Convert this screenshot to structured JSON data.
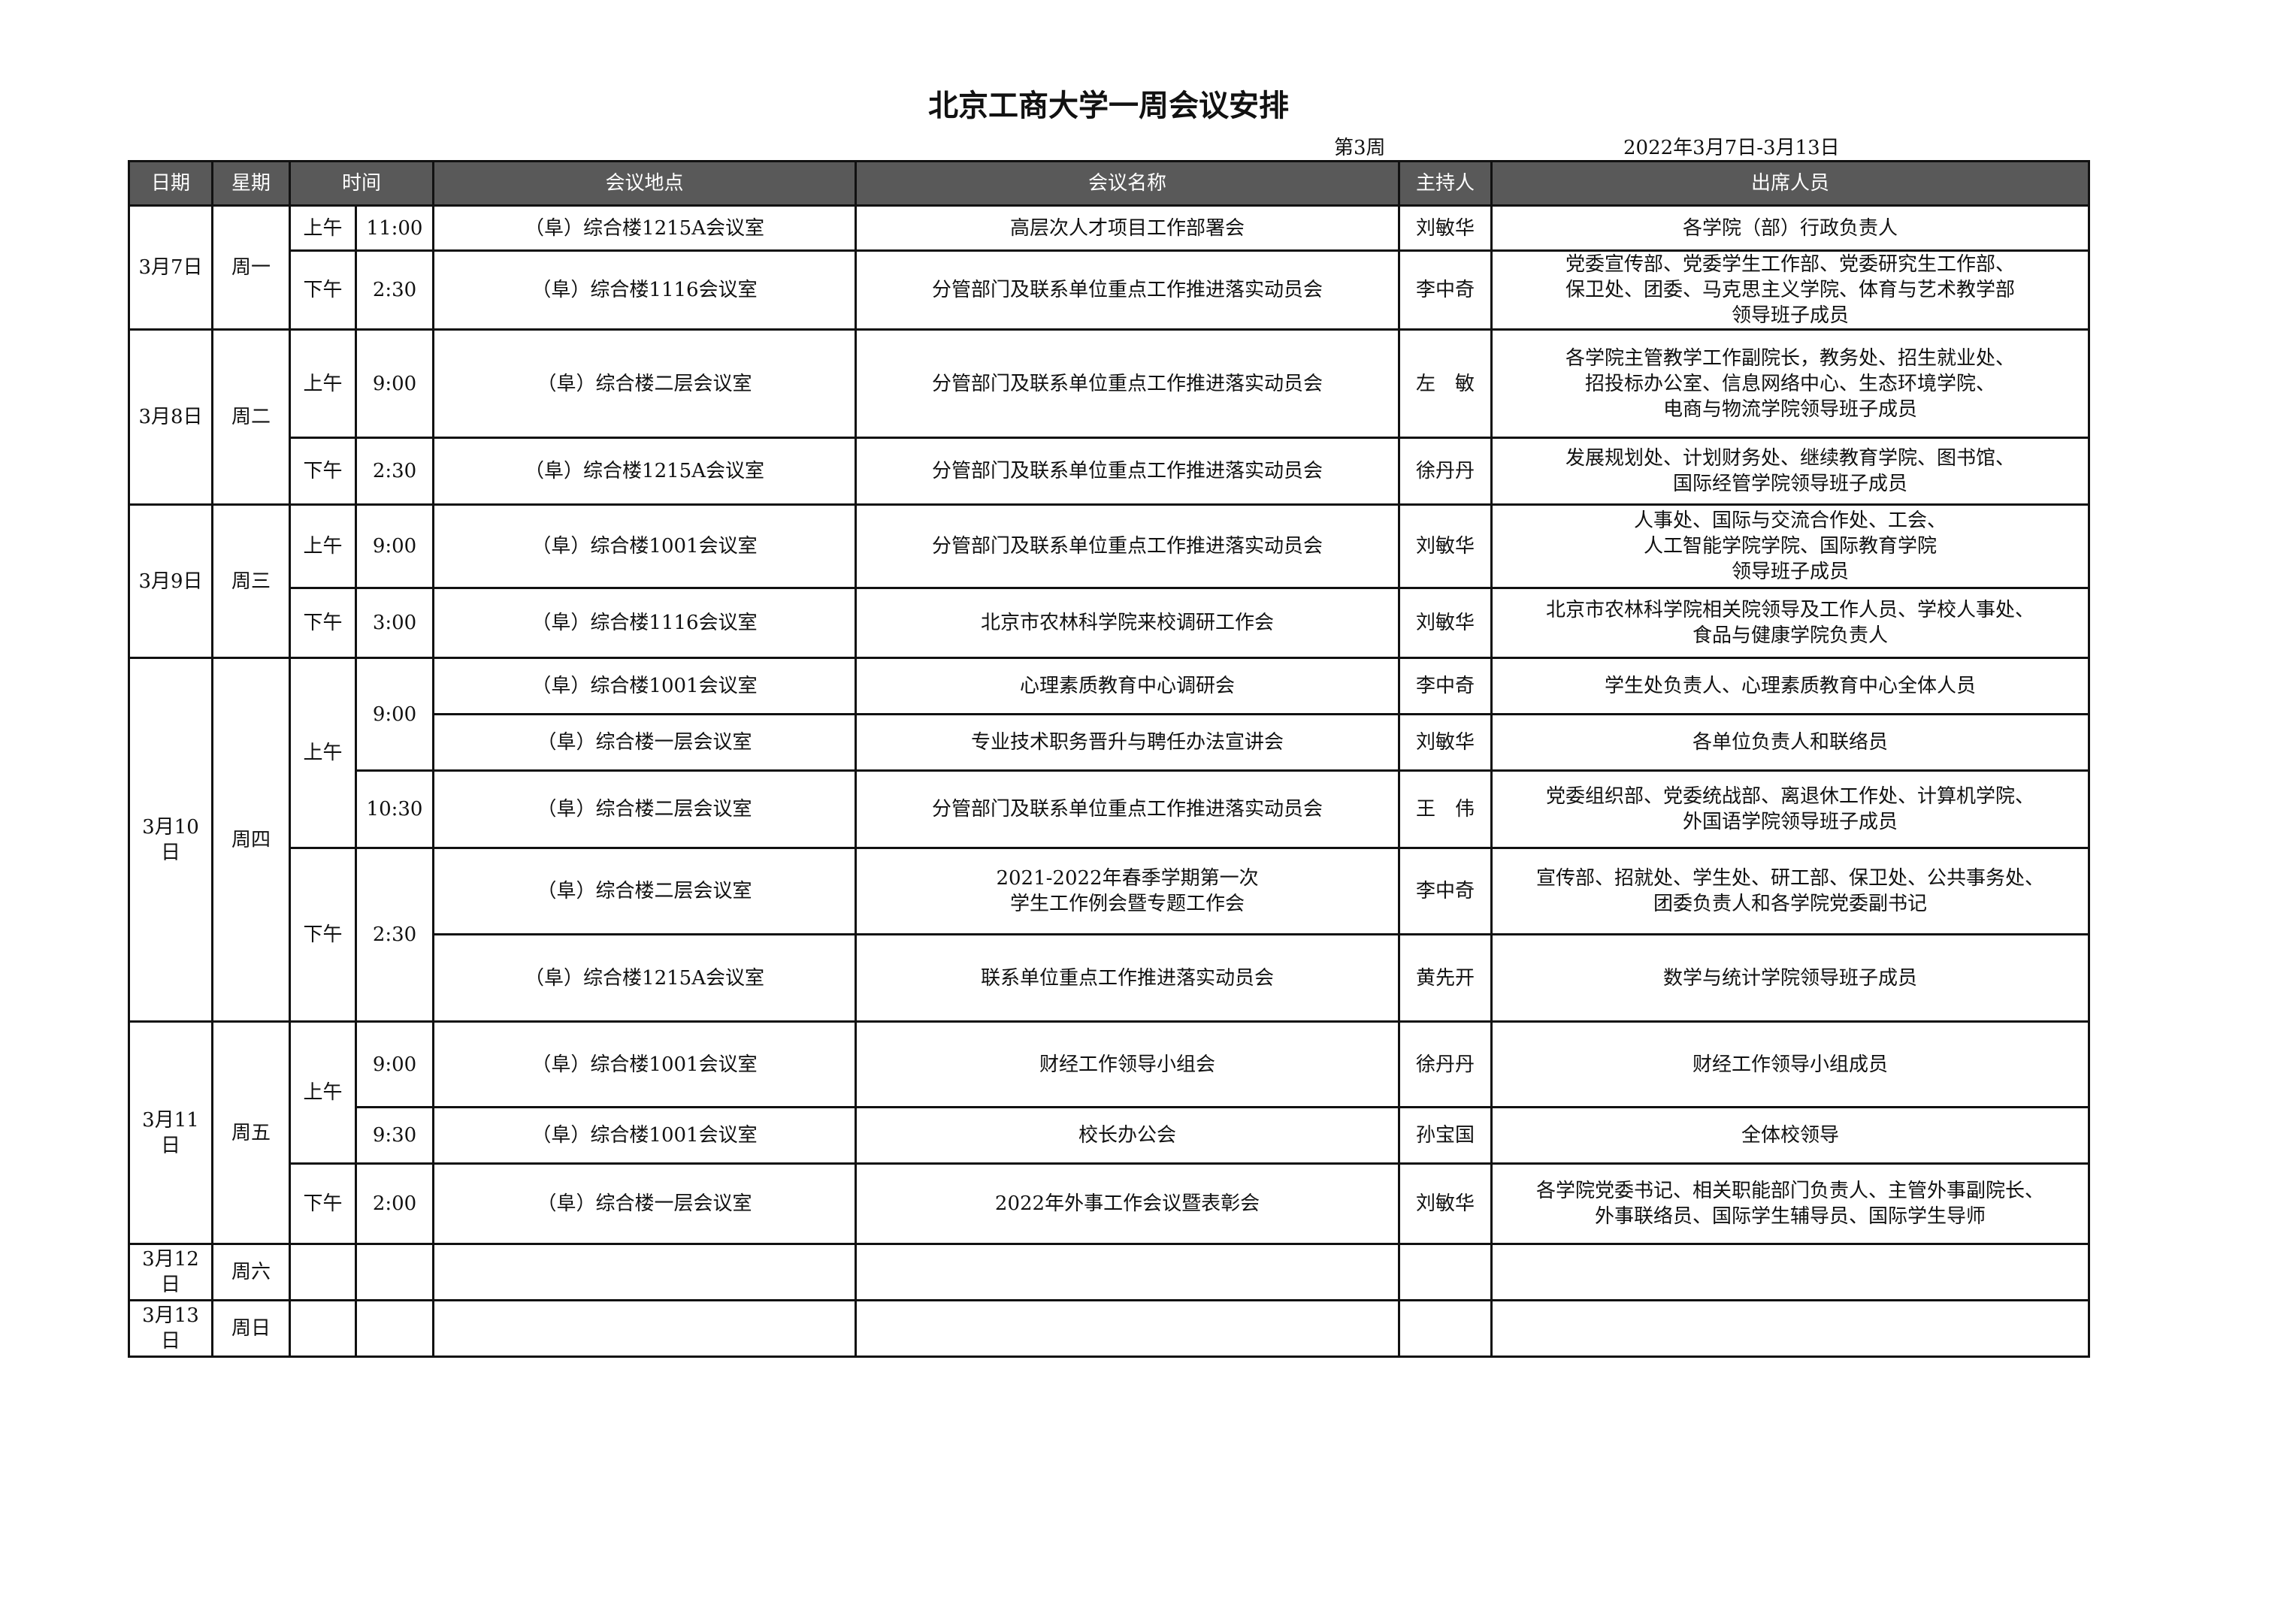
{
  "title": "北京工商大学一周会议安排",
  "week": "第3周",
  "date_range": "2022年3月7日-3月13日",
  "header": [
    "日期",
    "星期",
    "时间",
    "会议地点",
    "会议名称",
    "主持人",
    "出席人员"
  ],
  "days": [
    {
      "date": "3月7日",
      "weekday": "周一"
    },
    {
      "date": "3月8日",
      "weekday": "周二"
    },
    {
      "date": "3月9日",
      "weekday": "周三"
    },
    {
      "date": "3月10日",
      "weekday": "周四"
    },
    {
      "date": "3月11日",
      "weekday": "周五"
    },
    {
      "date": "3月12日",
      "weekday": "周六"
    },
    {
      "date": "3月13日",
      "weekday": "周日"
    }
  ],
  "meetings": [
    {
      "period": "上午",
      "time": "11:00",
      "location": "（阜）综合楼1215A会议室",
      "name": "高层次人才项目工作部署会",
      "host": "刘敏华",
      "attendees": "各学院（部）行政负责人"
    },
    {
      "period": "下午",
      "time": "2:30",
      "location": "（阜）综合楼1116会议室",
      "name": "分管部门及联系单位重点工作推进落实动员会",
      "host": "李中奇",
      "attendees": "党委宣传部、党委学生工作部、党委研究生工作部、\n保卫处、团委、马克思主义学院、体育与艺术教学部\n领导班子成员"
    },
    {
      "period": "上午",
      "time": "9:00",
      "location": "（阜）综合楼二层会议室",
      "name": "分管部门及联系单位重点工作推进落实动员会",
      "host": "左　敏",
      "attendees": "各学院主管教学工作副院长，教务处、招生就业处、\n招投标办公室、信息网络中心、生态环境学院、\n电商与物流学院领导班子成员"
    },
    {
      "period": "下午",
      "time": "2:30",
      "location": "（阜）综合楼1215A会议室",
      "name": "分管部门及联系单位重点工作推进落实动员会",
      "host": "徐丹丹",
      "attendees": "发展规划处、计划财务处、继续教育学院、图书馆、\n国际经管学院领导班子成员"
    },
    {
      "period": "上午",
      "time": "9:00",
      "location": "（阜）综合楼1001会议室",
      "name": "分管部门及联系单位重点工作推进落实动员会",
      "host": "刘敏华",
      "attendees": "人事处、国际与交流合作处、工会、\n人工智能学院学院、国际教育学院\n领导班子成员"
    },
    {
      "period": "下午",
      "time": "3:00",
      "location": "（阜）综合楼1116会议室",
      "name": "北京市农林科学院来校调研工作会",
      "host": "刘敏华",
      "attendees": "北京市农林科学院相关院领导及工作人员、学校人事处、\n食品与健康学院负责人"
    },
    {
      "period": "上午",
      "time": "9:00",
      "location": "（阜）综合楼1001会议室",
      "name": "心理素质教育中心调研会",
      "host": "李中奇",
      "attendees": "学生处负责人、心理素质教育中心全体人员"
    },
    {
      "location": "（阜）综合楼一层会议室",
      "name": "专业技术职务晋升与聘任办法宣讲会",
      "host": "刘敏华",
      "attendees": "各单位负责人和联络员"
    },
    {
      "time": "10:30",
      "location": "（阜）综合楼二层会议室",
      "name": "分管部门及联系单位重点工作推进落实动员会",
      "host": "王　伟",
      "attendees": "党委组织部、党委统战部、离退休工作处、计算机学院、\n外国语学院领导班子成员"
    },
    {
      "period": "下午",
      "time": "2:30",
      "location": "（阜）综合楼二层会议室",
      "name": "2021-2022年春季学期第一次\n学生工作例会暨专题工作会",
      "host": "李中奇",
      "attendees": "宣传部、招就处、学生处、研工部、保卫处、公共事务处、\n团委负责人和各学院党委副书记"
    },
    {
      "location": "（阜）综合楼1215A会议室",
      "name": "联系单位重点工作推进落实动员会",
      "host": "黄先开",
      "attendees": "数学与统计学院领导班子成员"
    },
    {
      "period": "上午",
      "time": "9:00",
      "location": "（阜）综合楼1001会议室",
      "name": "财经工作领导小组会",
      "host": "徐丹丹",
      "attendees": "财经工作领导小组成员"
    },
    {
      "time": "9:30",
      "location": "（阜）综合楼1001会议室",
      "name": "校长办公会",
      "host": "孙宝国",
      "attendees": "全体校领导"
    },
    {
      "period": "下午",
      "time": "2:00",
      "location": "（阜）综合楼一层会议室",
      "name": "2022年外事工作会议暨表彰会",
      "host": "刘敏华",
      "attendees": "各学院党委书记、相关职能部门负责人、主管外事副院长、\n外事联络员、国际学生辅导员、国际学生导师"
    }
  ]
}
